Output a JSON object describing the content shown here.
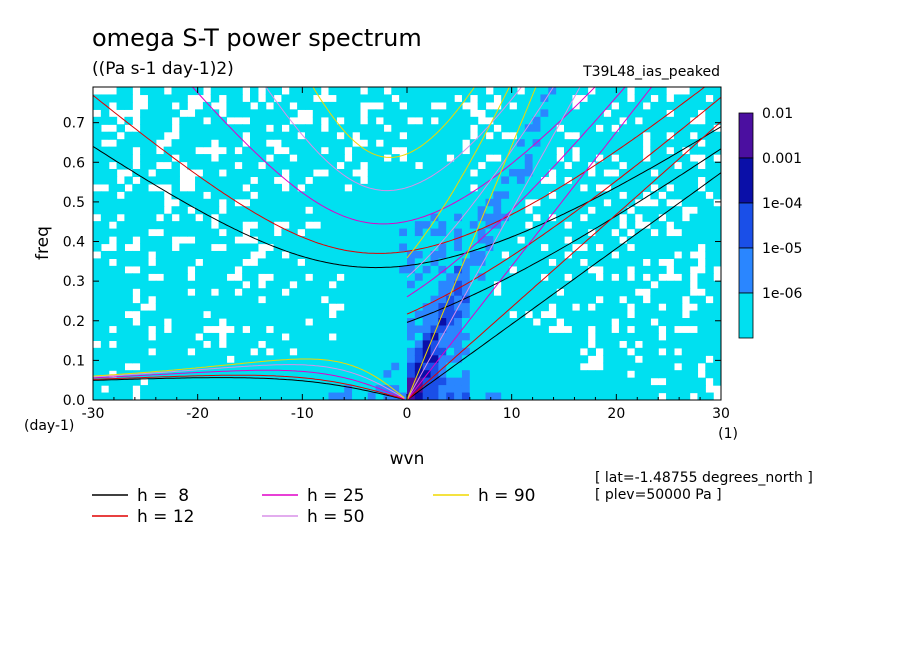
{
  "chart_data": {
    "type": "heatmap",
    "title": "omega S-T power spectrum",
    "subtitle": "((Pa s-1 day-1)2)",
    "run_label": "T39L48_ias_peaked",
    "xlabel": "wvn",
    "xunit": "(1)",
    "ylabel": "freq",
    "yunit": "(day-1)",
    "xlim": [
      -30,
      30
    ],
    "ylim": [
      0,
      0.79
    ],
    "xticks": [
      "-30",
      "-20",
      "-10",
      "0",
      "10",
      "20",
      "30"
    ],
    "xtick_values": [
      -30,
      -20,
      -10,
      0,
      10,
      20,
      30
    ],
    "yticks": [
      "0.0",
      "0.1",
      "0.2",
      "0.3",
      "0.4",
      "0.5",
      "0.6",
      "0.7"
    ],
    "ytick_values": [
      0,
      0.1,
      0.2,
      0.3,
      0.4,
      0.5,
      0.6,
      0.7
    ],
    "colorbar": {
      "scale": "log",
      "labels": [
        "0.01",
        "0.001",
        "1e-04",
        "1e-05",
        "1e-06"
      ],
      "colors": [
        "#4b0fa0",
        "#0a0fa8",
        "#1a4fe8",
        "#2a86ff",
        "#00e0f0"
      ]
    },
    "series": [
      {
        "name": "h =  8",
        "h": 8,
        "color": "#000000"
      },
      {
        "name": "h = 12",
        "h": 12,
        "color": "#e00000"
      },
      {
        "name": "h = 25",
        "h": 25,
        "color": "#e000c8"
      },
      {
        "name": "h = 50",
        "h": 50,
        "color": "#d890e8"
      },
      {
        "name": "h = 90",
        "h": 90,
        "color": "#f0d800"
      }
    ],
    "info": [
      "[ lat=-1.48755 degrees_north ]",
      "[ plev=50000 Pa ]"
    ]
  }
}
